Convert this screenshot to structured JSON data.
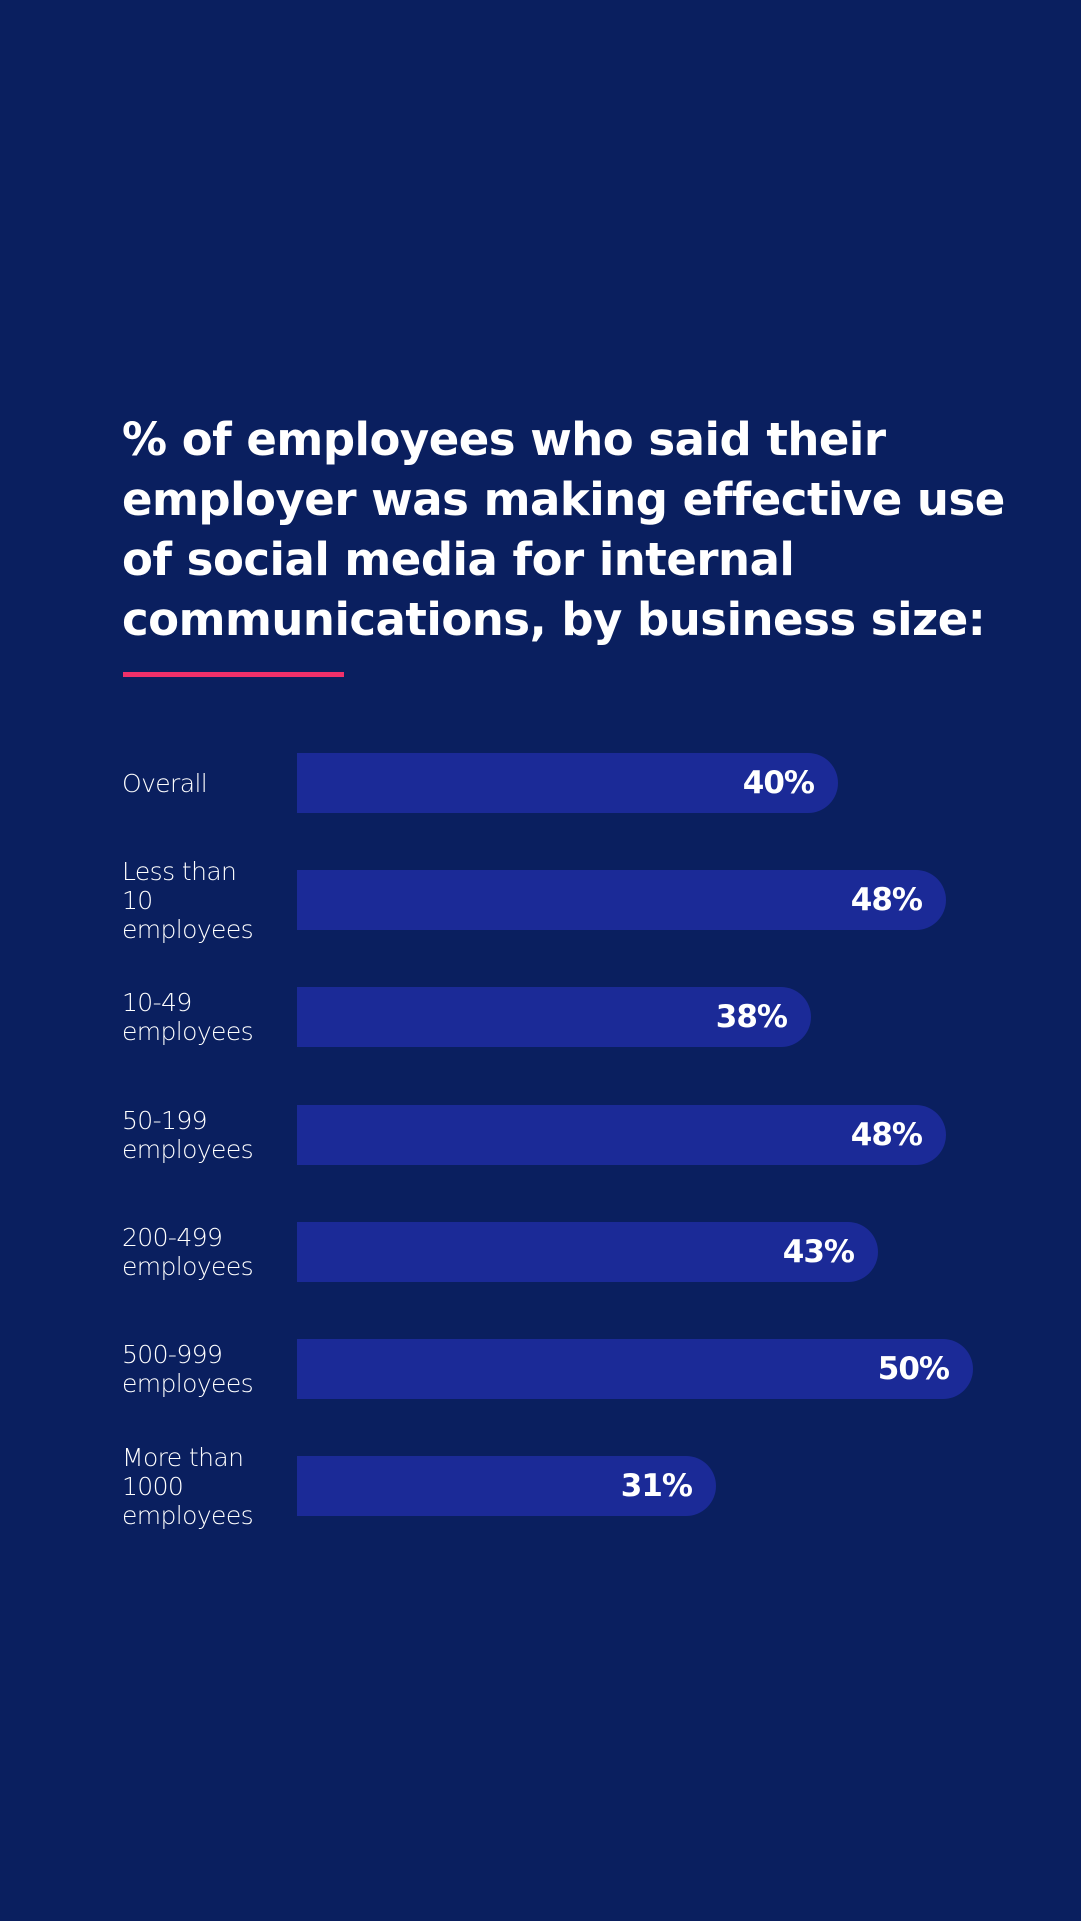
{
  "colors": {
    "background": "#0a1f5f",
    "bar": "#1b2a97",
    "accent_underline": "#f0306a",
    "text": "#ffffff"
  },
  "chart_data": {
    "type": "bar",
    "orientation": "horizontal",
    "title": "% of employees who said their employer was making effective use of social media for internal communications, by business size:",
    "xlabel": "",
    "ylabel": "",
    "xlim": [
      0,
      50
    ],
    "grid": false,
    "legend": null,
    "categories": [
      "Overall",
      "Less than\n10\nemployees",
      "10-49\nemployees",
      "50-199\nemployees",
      "200-499\nemployees",
      "500-999\nemployees",
      "More than\n1000\nemployees"
    ],
    "values": [
      40,
      48,
      38,
      48,
      43,
      50,
      31
    ],
    "value_labels": [
      "40%",
      "48%",
      "38%",
      "48%",
      "43%",
      "50%",
      "31%"
    ],
    "unit": "%"
  }
}
